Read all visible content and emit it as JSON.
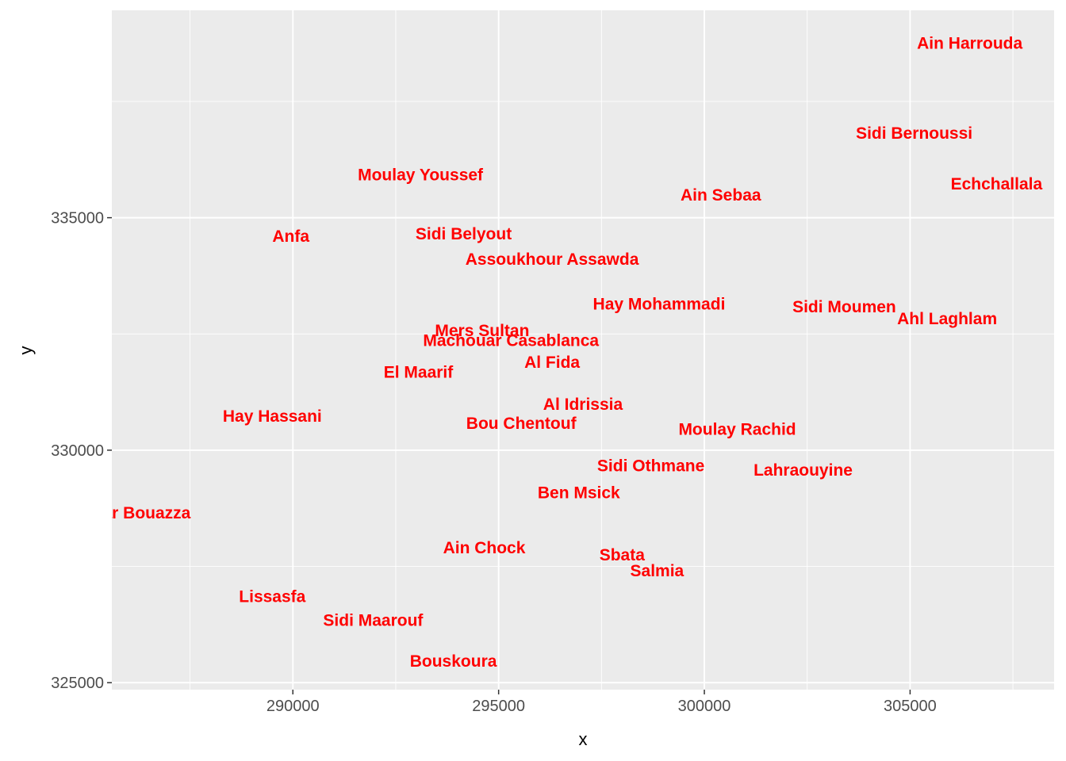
{
  "chart_data": {
    "type": "scatter",
    "title": "",
    "xlabel": "x",
    "ylabel": "y",
    "xlim": [
      285600,
      308500
    ],
    "ylim": [
      324850,
      339460
    ],
    "x_ticks": [
      290000,
      295000,
      300000,
      305000
    ],
    "y_ticks": [
      325000,
      330000,
      335000
    ],
    "x_minor_ticks": [
      287500,
      292500,
      297500,
      302500,
      307500
    ],
    "y_minor_ticks": [
      327500,
      332500,
      337500
    ],
    "grid": true,
    "background": "#ebebeb",
    "label_color": "#ff0000",
    "points": [
      {
        "label": "Ain Harrouda",
        "x": 306450,
        "y": 338750
      },
      {
        "label": "Sidi Bernoussi",
        "x": 305100,
        "y": 336820
      },
      {
        "label": "Echchallala",
        "x": 307100,
        "y": 335730
      },
      {
        "label": "Moulay Youssef",
        "x": 293100,
        "y": 335920
      },
      {
        "label": "Ain Sebaa",
        "x": 300400,
        "y": 335490
      },
      {
        "label": "Anfa",
        "x": 289950,
        "y": 334600
      },
      {
        "label": "Sidi Belyout",
        "x": 294150,
        "y": 334650
      },
      {
        "label": "Assoukhour Assawda",
        "x": 296300,
        "y": 334110
      },
      {
        "label": "Hay Mohammadi",
        "x": 298900,
        "y": 333140
      },
      {
        "label": "Sidi Moumen",
        "x": 303400,
        "y": 333080
      },
      {
        "label": "Ahl Laghlam",
        "x": 305900,
        "y": 332830
      },
      {
        "label": "Mers Sultan",
        "x": 294600,
        "y": 332570
      },
      {
        "label": "Machouar Casablanca",
        "x": 295300,
        "y": 332360
      },
      {
        "label": "Al Fida",
        "x": 296300,
        "y": 331890
      },
      {
        "label": "El Maarif",
        "x": 293050,
        "y": 331680
      },
      {
        "label": "Al Idrissia",
        "x": 297050,
        "y": 330990
      },
      {
        "label": "Hay Hassani",
        "x": 289500,
        "y": 330730
      },
      {
        "label": "Bou Chentouf",
        "x": 295550,
        "y": 330580
      },
      {
        "label": "Moulay Rachid",
        "x": 300800,
        "y": 330450
      },
      {
        "label": "Sidi Othmane",
        "x": 298700,
        "y": 329670
      },
      {
        "label": "Lahraouyine",
        "x": 302400,
        "y": 329570
      },
      {
        "label": "Ben Msick",
        "x": 296950,
        "y": 329090
      },
      {
        "label": "Dar Bouazza",
        "x": 286300,
        "y": 328650
      },
      {
        "label": "Ain Chock",
        "x": 294650,
        "y": 327900
      },
      {
        "label": "Sbata",
        "x": 298000,
        "y": 327750
      },
      {
        "label": "Salmia",
        "x": 298850,
        "y": 327410
      },
      {
        "label": "Lissasfa",
        "x": 289500,
        "y": 326850
      },
      {
        "label": "Sidi Maarouf",
        "x": 291950,
        "y": 326340
      },
      {
        "label": "Bouskoura",
        "x": 293900,
        "y": 325460
      }
    ]
  }
}
